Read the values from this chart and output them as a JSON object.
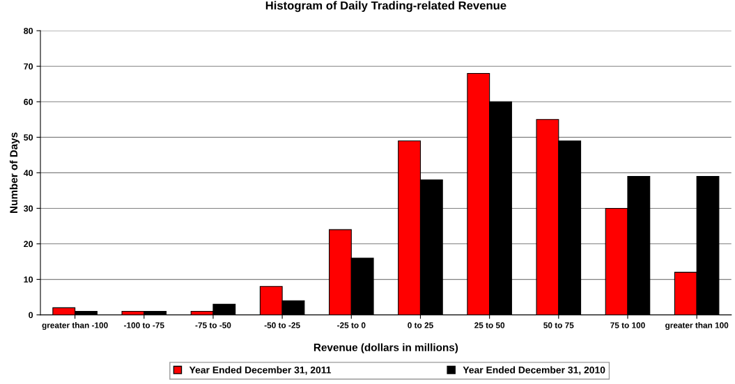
{
  "chart_data": {
    "type": "bar",
    "title": "Histogram of Daily Trading-related Revenue",
    "xlabel": "Revenue (dollars in millions)",
    "ylabel": "Number of Days",
    "categories": [
      "greater than -100",
      "-100 to -75",
      "-75 to -50",
      "-50 to -25",
      "-25 to 0",
      "0 to 25",
      "25 to 50",
      "50 to 75",
      "75 to 100",
      "greater than 100"
    ],
    "series": [
      {
        "name": "Year Ended December 31, 2011",
        "color": "#ff0000",
        "values": [
          2,
          1,
          1,
          8,
          24,
          49,
          68,
          55,
          30,
          12
        ]
      },
      {
        "name": "Year Ended December 31, 2010",
        "color": "#000000",
        "values": [
          1,
          1,
          3,
          4,
          16,
          38,
          60,
          49,
          39,
          39
        ]
      }
    ],
    "ylim": [
      0,
      80
    ],
    "yticks": [
      0,
      10,
      20,
      30,
      40,
      50,
      60,
      70,
      80
    ],
    "grid": "y",
    "legend": "bottom"
  }
}
